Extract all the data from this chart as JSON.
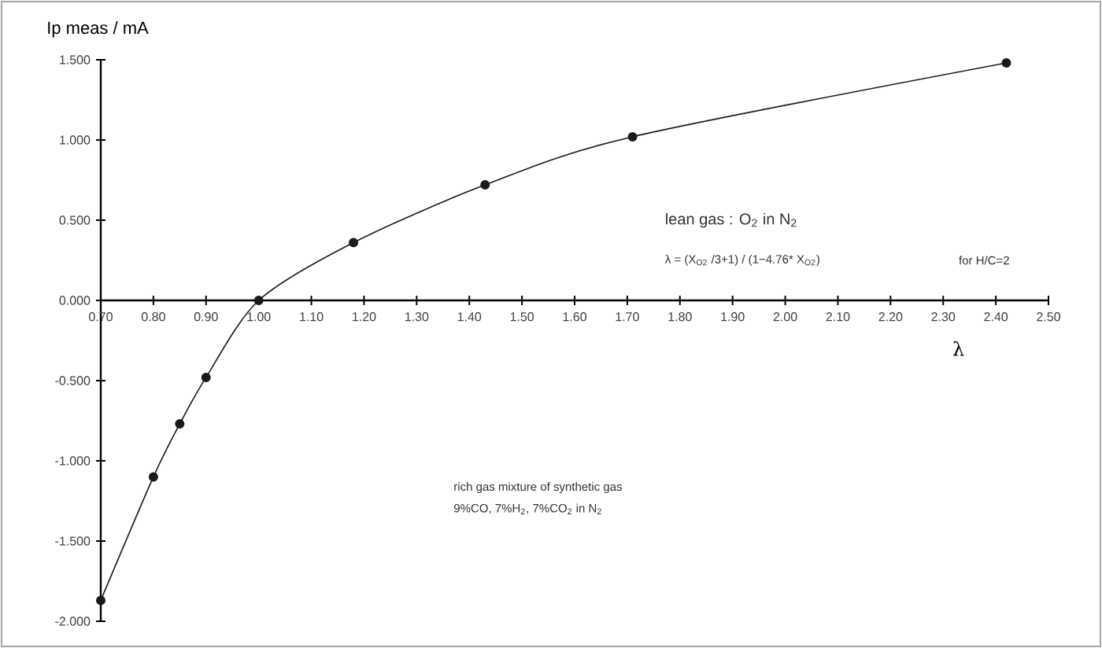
{
  "chart_data": {
    "type": "line",
    "xlabel": "λ",
    "ylabel": "Ip meas / mA",
    "x": [
      0.7,
      0.8,
      0.85,
      0.9,
      1.0,
      1.18,
      1.43,
      1.71,
      2.42
    ],
    "values": [
      -1.87,
      -1.1,
      -0.77,
      -0.48,
      0.0,
      0.36,
      0.72,
      1.02,
      1.48
    ],
    "color": "#1a1a1a",
    "marker": "circle",
    "line_style": "solid",
    "xlim": [
      0.7,
      2.5
    ],
    "ylim": [
      -2.0,
      1.5
    ],
    "xticks": [
      {
        "value": 0.7,
        "label": "0.70"
      },
      {
        "value": 0.8,
        "label": "0.80"
      },
      {
        "value": 0.9,
        "label": "0.90"
      },
      {
        "value": 1.0,
        "label": "1.00"
      },
      {
        "value": 1.1,
        "label": "1.10"
      },
      {
        "value": 1.2,
        "label": "1.20"
      },
      {
        "value": 1.3,
        "label": "1.30"
      },
      {
        "value": 1.4,
        "label": "1.40"
      },
      {
        "value": 1.5,
        "label": "1.50"
      },
      {
        "value": 1.6,
        "label": "1.60"
      },
      {
        "value": 1.7,
        "label": "1.70"
      },
      {
        "value": 1.8,
        "label": "1.80"
      },
      {
        "value": 1.9,
        "label": "1.90"
      },
      {
        "value": 2.0,
        "label": "2.00"
      },
      {
        "value": 2.1,
        "label": "2.10"
      },
      {
        "value": 2.2,
        "label": "2.20"
      },
      {
        "value": 2.3,
        "label": "2.30"
      },
      {
        "value": 2.4,
        "label": "2.40"
      },
      {
        "value": 2.5,
        "label": "2.50"
      }
    ],
    "yticks": [
      {
        "value": -2.0,
        "label": "-2.000"
      },
      {
        "value": -1.5,
        "label": "-1.500"
      },
      {
        "value": -1.0,
        "label": "-1.000"
      },
      {
        "value": -0.5,
        "label": "-0.500"
      },
      {
        "value": 0.0,
        "label": "0.000"
      },
      {
        "value": 0.5,
        "label": "0.500"
      },
      {
        "value": 1.0,
        "label": "1.000"
      },
      {
        "value": 1.5,
        "label": "1.500"
      }
    ],
    "annotations": [
      "lean gas : O$_{2}$ in N$_{2}$",
      "λ = (X$_{O2}$ /3+1) / (1−4.76* X$_{O2}$)",
      "for H/C=2",
      "rich gas mixture of synthetic gas",
      "9%CO, 7%H$_{2}$, 7%CO$_{2}$ in N$_{2}$"
    ]
  }
}
